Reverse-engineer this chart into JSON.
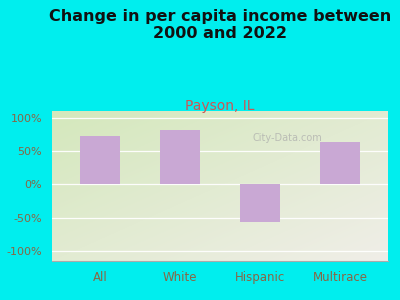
{
  "title": "Change in per capita income between\n2000 and 2022",
  "subtitle": "Payson, IL",
  "categories": [
    "All",
    "White",
    "Hispanic",
    "Multirace"
  ],
  "values": [
    72,
    82,
    -57,
    63
  ],
  "bar_color": "#C9A8D4",
  "background_color": "#00EEEE",
  "plot_bg_top_right": "#F0EEE8",
  "plot_bg_bottom_left": "#D4E8BC",
  "title_fontsize": 11.5,
  "subtitle_fontsize": 10,
  "subtitle_color": "#CC5555",
  "yticks": [
    -100,
    -50,
    0,
    50,
    100
  ],
  "ylim": [
    -115,
    110
  ],
  "watermark": "City-Data.com",
  "tick_color": "#886644"
}
